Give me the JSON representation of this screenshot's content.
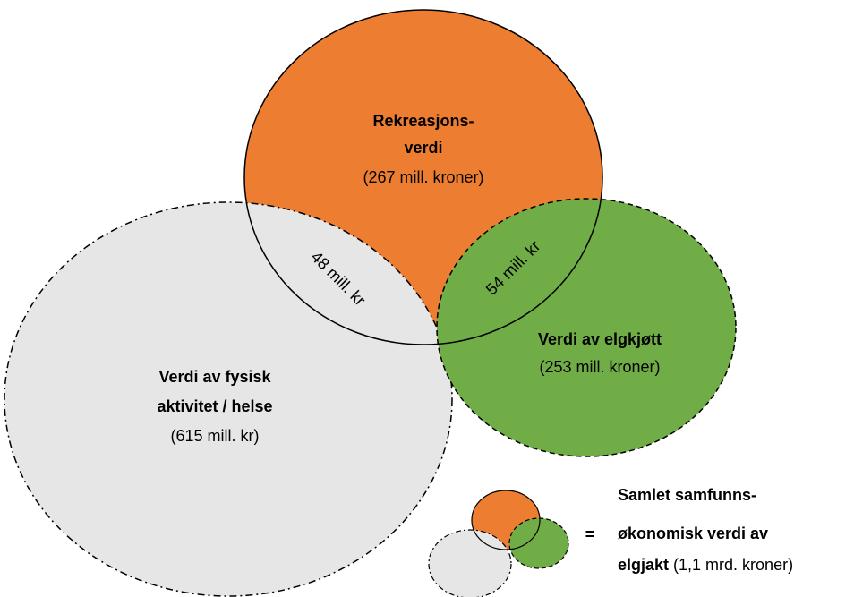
{
  "circles": [
    {
      "title_lines": [
        "Rekreasjons-",
        "verdi"
      ],
      "value": "(267 mill. kroner)"
    },
    {
      "title_lines": [
        "Verdi av fysisk",
        "aktivitet / helse"
      ],
      "value": "(615 mill. kr)"
    },
    {
      "title_lines": [
        "Verdi av elgkjøtt"
      ],
      "value": "(253 mill. kroner)"
    }
  ],
  "overlaps": [
    "48 mill. kr",
    "54 mill. kr"
  ],
  "legend": {
    "equals": "=",
    "lines": [
      "Samlet samfunns-",
      "økonomisk verdi av"
    ],
    "last_bold": "elgjakt",
    "last_normal": " (1,1 mrd. kroner)"
  }
}
